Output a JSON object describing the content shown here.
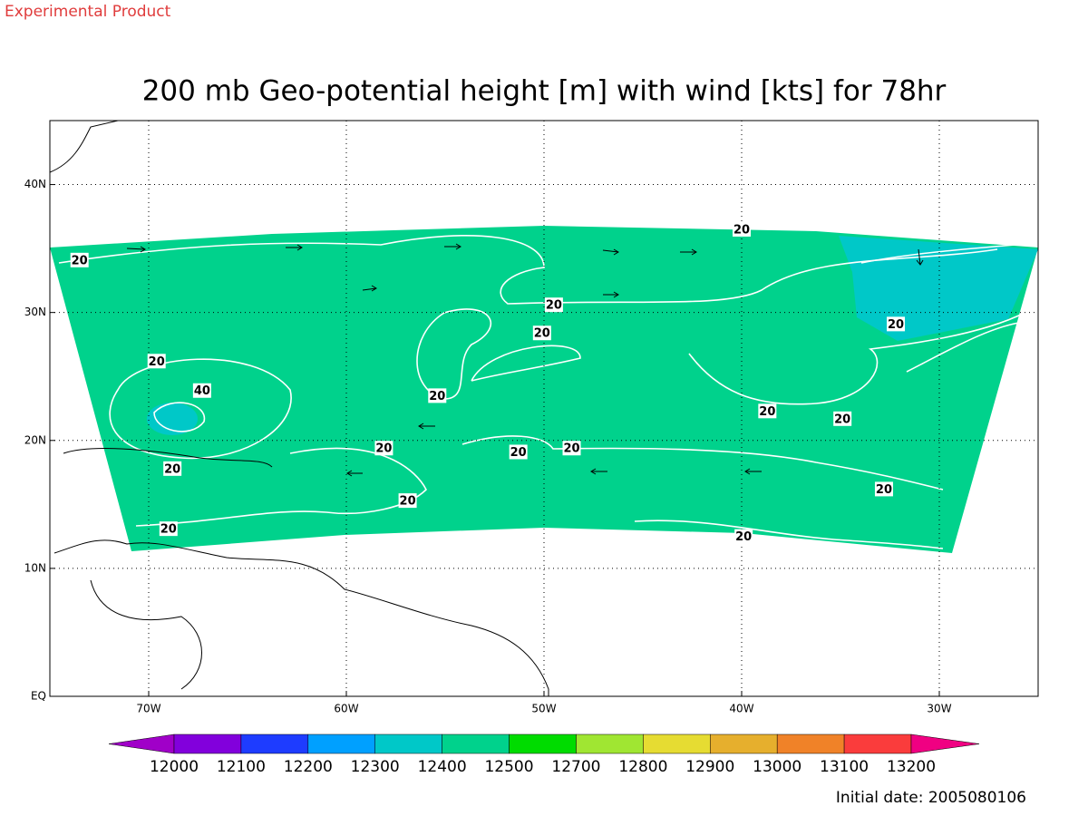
{
  "watermark": "Experimental Product",
  "title": "200 mb Geo-potential height [m] with wind [kts] for 78hr",
  "map": {
    "xlim": [
      -75,
      -25
    ],
    "ylim": [
      0,
      45
    ],
    "xticks": [
      {
        "value": -70,
        "label": "70W"
      },
      {
        "value": -60,
        "label": "60W"
      },
      {
        "value": -50,
        "label": "50W"
      },
      {
        "value": -40,
        "label": "40W"
      },
      {
        "value": -30,
        "label": "30W"
      }
    ],
    "yticks": [
      {
        "value": 0,
        "label": "EQ"
      },
      {
        "value": 10,
        "label": "10N"
      },
      {
        "value": 20,
        "label": "20N"
      },
      {
        "value": 30,
        "label": "30N"
      },
      {
        "value": 40,
        "label": "40N"
      }
    ],
    "grid": true
  },
  "contour_labels": [
    {
      "text": "20",
      "lon": -73.5,
      "lat": 34.1
    },
    {
      "text": "20",
      "lon": -40.0,
      "lat": 36.5
    },
    {
      "text": "20",
      "lon": -49.5,
      "lat": 30.6
    },
    {
      "text": "20",
      "lon": -50.1,
      "lat": 28.4
    },
    {
      "text": "20",
      "lon": -32.2,
      "lat": 29.1
    },
    {
      "text": "20",
      "lon": -69.6,
      "lat": 26.2
    },
    {
      "text": "40",
      "lon": -67.3,
      "lat": 23.9
    },
    {
      "text": "20",
      "lon": -55.4,
      "lat": 23.5
    },
    {
      "text": "20",
      "lon": -38.7,
      "lat": 22.3
    },
    {
      "text": "20",
      "lon": -34.9,
      "lat": 21.7
    },
    {
      "text": "20",
      "lon": -58.1,
      "lat": 19.4
    },
    {
      "text": "20",
      "lon": -51.3,
      "lat": 19.1
    },
    {
      "text": "20",
      "lon": -48.6,
      "lat": 19.4
    },
    {
      "text": "20",
      "lon": -68.8,
      "lat": 17.8
    },
    {
      "text": "20",
      "lon": -32.8,
      "lat": 16.2
    },
    {
      "text": "20",
      "lon": -56.9,
      "lat": 15.3
    },
    {
      "text": "20",
      "lon": -69.0,
      "lat": 13.1
    },
    {
      "text": "20",
      "lon": -39.9,
      "lat": 12.5
    }
  ],
  "colorbar": {
    "levels": [
      12000,
      12100,
      12200,
      12300,
      12400,
      12500,
      12700,
      12800,
      12900,
      13000,
      13100,
      13200
    ],
    "colors": [
      "#a000c8",
      "#8200dc",
      "#1e3cff",
      "#00a0ff",
      "#00c8c8",
      "#00d28c",
      "#00dc00",
      "#a0e632",
      "#e6dc32",
      "#e6af2d",
      "#f08228",
      "#fa3c3c",
      "#f00082"
    ]
  },
  "initial_date": "Initial date: 2005080106"
}
